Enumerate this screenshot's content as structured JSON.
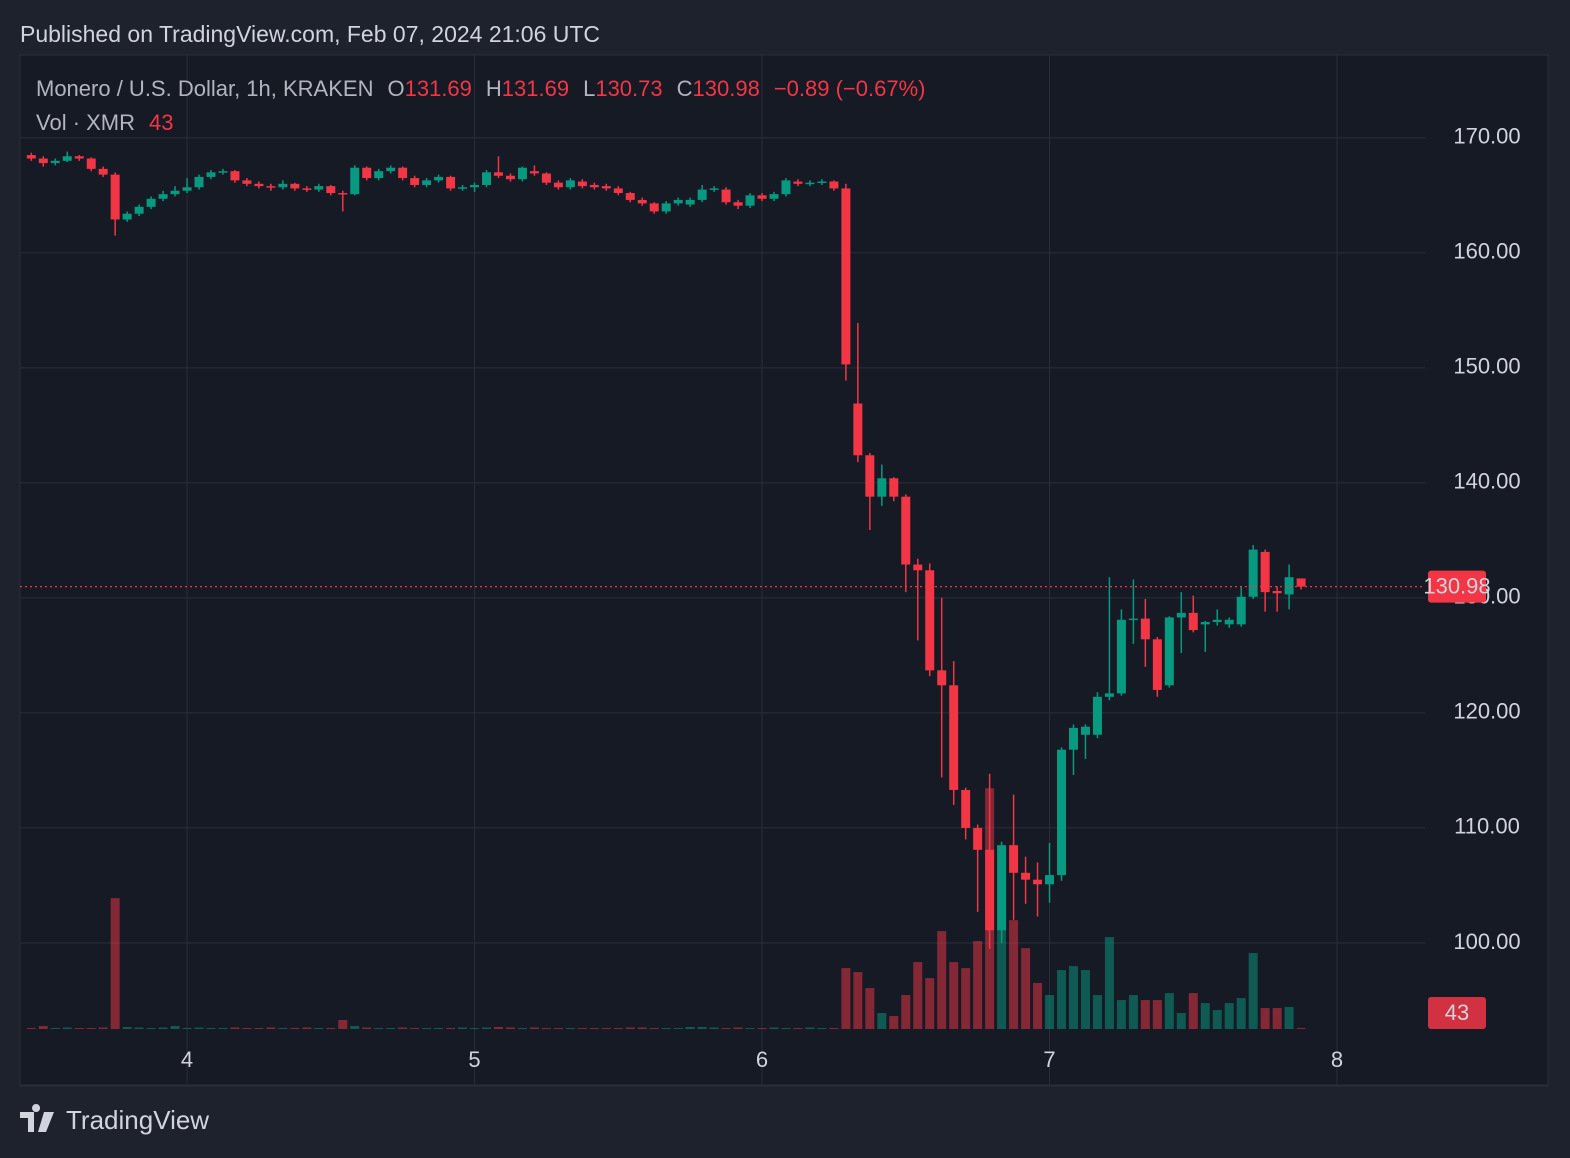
{
  "chart_data": {
    "type": "candlestick",
    "published": "Published on TradingView.com, Feb 07, 2024 21:06 UTC",
    "title": "Monero / U.S. Dollar, 1h, KRAKEN",
    "ohlc_labels": [
      "O",
      "H",
      "L",
      "C"
    ],
    "change_label": "−0.89 (−0.67%)",
    "volume_label": "Vol · XMR",
    "brand": "TradingView",
    "up_color": "#089981",
    "down_color": "#f23645",
    "grid": true,
    "x": [
      3.4583,
      3.5,
      3.5417,
      3.5833,
      3.625,
      3.6667,
      3.7083,
      3.75,
      3.7917,
      3.8333,
      3.875,
      3.9167,
      3.9583,
      4,
      4.0417,
      4.0833,
      4.125,
      4.1667,
      4.2083,
      4.25,
      4.2917,
      4.3333,
      4.375,
      4.4167,
      4.4583,
      4.5,
      4.5417,
      4.5833,
      4.625,
      4.6667,
      4.7083,
      4.75,
      4.7917,
      4.8333,
      4.875,
      4.9167,
      4.9583,
      5,
      5.0417,
      5.0833,
      5.125,
      5.1667,
      5.2083,
      5.25,
      5.2917,
      5.3333,
      5.375,
      5.4167,
      5.4583,
      5.5,
      5.5417,
      5.5833,
      5.625,
      5.6667,
      5.7083,
      5.75,
      5.7917,
      5.8333,
      5.875,
      5.9167,
      5.9583,
      6,
      6.0417,
      6.0833,
      6.125,
      6.1667,
      6.2083,
      6.25,
      6.2917,
      6.3333,
      6.375,
      6.4167,
      6.4583,
      6.5,
      6.5417,
      6.5833,
      6.625,
      6.6667,
      6.7083,
      6.75,
      6.7917,
      6.8333,
      6.875,
      6.9167,
      6.9583,
      7,
      7.0417,
      7.0833,
      7.125,
      7.1667,
      7.2083,
      7.25,
      7.2917,
      7.3333,
      7.375,
      7.4167,
      7.4583,
      7.5,
      7.5417,
      7.5833,
      7.625,
      7.6667,
      7.7083,
      7.75,
      7.7917,
      7.8333,
      7.875
    ],
    "open": [
      168.5,
      168.2,
      167.8,
      168.0,
      168.4,
      168.2,
      167.3,
      166.8,
      162.9,
      163.4,
      164.0,
      164.7,
      165.1,
      165.4,
      165.7,
      166.6,
      167.0,
      167.1,
      166.3,
      166.0,
      165.8,
      165.7,
      166.0,
      165.6,
      165.5,
      165.8,
      165.2,
      165.1,
      167.4,
      166.5,
      167.1,
      167.4,
      166.5,
      165.9,
      166.3,
      166.6,
      165.6,
      165.7,
      165.9,
      167.0,
      166.7,
      166.4,
      167.1,
      166.9,
      166.1,
      165.7,
      166.2,
      165.9,
      165.8,
      165.6,
      165.2,
      164.6,
      164.3,
      163.6,
      164.3,
      164.2,
      164.6,
      165.5,
      165.5,
      164.4,
      164.1,
      165.0,
      164.7,
      165.1,
      166.2,
      166.0,
      166.1,
      166.2,
      165.6,
      146.9,
      142.4,
      138.8,
      140.4,
      138.8,
      132.9,
      132.4,
      123.7,
      122.4,
      113.3,
      110.0,
      108.1,
      101.1,
      108.5,
      106.1,
      105.5,
      105.1,
      105.9,
      116.8,
      118.1,
      118.1,
      121.4,
      121.7,
      128.1,
      128.2,
      126.4,
      122.4,
      128.3,
      128.7,
      127.7,
      127.9,
      127.7,
      127.7,
      130.1,
      134.0,
      130.6,
      130.3,
      131.69
    ],
    "high": [
      168.7,
      168.4,
      168.2,
      168.8,
      168.5,
      168.3,
      167.5,
      167.0,
      163.6,
      164.2,
      164.9,
      165.4,
      165.8,
      166.5,
      166.8,
      167.2,
      167.3,
      167.2,
      166.5,
      166.2,
      166.0,
      166.3,
      166.1,
      165.8,
      166.0,
      165.9,
      165.4,
      167.6,
      167.5,
      167.3,
      167.6,
      167.5,
      166.7,
      166.5,
      166.8,
      166.7,
      165.9,
      166.1,
      167.2,
      168.4,
      166.9,
      167.5,
      167.6,
      167.0,
      166.3,
      166.5,
      166.4,
      166.1,
      166.0,
      165.8,
      165.3,
      164.8,
      164.4,
      164.5,
      164.8,
      164.8,
      165.9,
      165.8,
      165.7,
      164.6,
      165.2,
      165.2,
      165.3,
      166.5,
      166.4,
      166.3,
      166.4,
      166.3,
      166.0,
      153.9,
      142.6,
      141.6,
      140.5,
      139.0,
      133.4,
      133.0,
      130.0,
      124.5,
      113.5,
      110.3,
      114.7,
      108.8,
      112.9,
      107.5,
      107.0,
      108.7,
      117.0,
      119.0,
      119.0,
      121.8,
      131.8,
      129.0,
      131.6,
      129.9,
      126.6,
      128.4,
      130.5,
      130.2,
      128.0,
      129.0,
      128.3,
      131.0,
      134.6,
      134.2,
      131.0,
      132.9,
      131.69
    ],
    "low": [
      168.0,
      167.5,
      167.6,
      167.9,
      168.0,
      167.1,
      166.6,
      161.5,
      162.7,
      163.2,
      163.8,
      164.5,
      164.9,
      165.2,
      165.5,
      166.4,
      166.8,
      166.1,
      165.8,
      165.6,
      165.4,
      165.5,
      165.4,
      165.3,
      165.3,
      165.0,
      163.6,
      165.0,
      166.3,
      166.3,
      166.9,
      166.3,
      165.7,
      165.7,
      166.1,
      165.4,
      165.4,
      165.3,
      165.7,
      166.5,
      166.2,
      166.2,
      166.7,
      165.9,
      165.5,
      165.5,
      165.6,
      165.5,
      165.4,
      165.0,
      164.4,
      164.1,
      163.4,
      163.4,
      164.1,
      164.0,
      164.4,
      165.3,
      164.2,
      163.8,
      163.9,
      164.5,
      164.5,
      164.9,
      165.8,
      165.8,
      165.9,
      165.4,
      148.9,
      141.8,
      135.9,
      138.0,
      138.4,
      130.5,
      126.3,
      123.2,
      114.4,
      112.0,
      109.0,
      102.7,
      99.5,
      100.0,
      102.0,
      103.4,
      102.3,
      103.5,
      105.4,
      114.6,
      116.0,
      117.8,
      121.1,
      121.5,
      126.0,
      124.0,
      121.4,
      122.2,
      125.2,
      127.0,
      125.3,
      127.6,
      127.4,
      127.5,
      129.9,
      128.8,
      128.8,
      129.0,
      130.73
    ],
    "close": [
      168.2,
      167.8,
      168.0,
      168.4,
      168.2,
      167.3,
      166.8,
      162.9,
      163.4,
      164.0,
      164.7,
      165.1,
      165.4,
      165.7,
      166.6,
      167.0,
      167.1,
      166.3,
      166.0,
      165.8,
      165.7,
      166.0,
      165.6,
      165.5,
      165.8,
      165.2,
      165.1,
      167.4,
      166.5,
      167.1,
      167.4,
      166.5,
      165.9,
      166.3,
      166.6,
      165.6,
      165.7,
      165.9,
      167.0,
      166.7,
      166.4,
      167.4,
      166.9,
      166.1,
      165.7,
      166.3,
      165.8,
      165.7,
      165.6,
      165.2,
      164.6,
      164.3,
      163.6,
      164.3,
      164.6,
      164.6,
      165.5,
      165.6,
      164.4,
      164.1,
      165.0,
      164.7,
      165.1,
      166.3,
      166.0,
      166.1,
      166.2,
      165.6,
      150.3,
      142.4,
      138.8,
      140.4,
      138.8,
      132.9,
      132.4,
      123.7,
      122.4,
      113.3,
      110.0,
      108.1,
      101.1,
      108.5,
      106.1,
      105.5,
      105.1,
      105.9,
      116.8,
      118.7,
      118.8,
      121.4,
      121.7,
      128.1,
      128.2,
      126.4,
      122.0,
      128.3,
      128.7,
      127.2,
      127.9,
      128.1,
      128.1,
      130.1,
      134.2,
      130.5,
      130.4,
      131.8,
      130.98
    ],
    "volume": [
      40,
      120,
      40,
      60,
      40,
      40,
      60,
      5240,
      80,
      60,
      40,
      60,
      120,
      40,
      60,
      40,
      40,
      60,
      40,
      40,
      60,
      40,
      40,
      60,
      40,
      40,
      360,
      120,
      60,
      40,
      40,
      60,
      40,
      40,
      40,
      40,
      60,
      40,
      60,
      80,
      60,
      40,
      60,
      40,
      40,
      40,
      40,
      40,
      40,
      40,
      60,
      60,
      40,
      40,
      40,
      80,
      80,
      60,
      40,
      60,
      40,
      40,
      60,
      40,
      40,
      60,
      40,
      40,
      2440,
      2280,
      1640,
      640,
      520,
      1360,
      2680,
      2040,
      3920,
      2680,
      2440,
      3520,
      9640,
      3960,
      4360,
      3240,
      1840,
      1360,
      2360,
      2520,
      2360,
      1360,
      3680,
      1160,
      1360,
      1160,
      1160,
      1440,
      640,
      1440,
      1040,
      760,
      1040,
      1240,
      3040,
      840,
      840,
      880,
      43
    ],
    "xlim": [
      3.419,
      8.306
    ],
    "xticks": [
      4,
      5,
      6,
      7,
      8
    ],
    "ylim": [
      87.65,
      177.2
    ],
    "yticks": [
      {
        "value": 100,
        "label": "100.00"
      },
      {
        "value": 110,
        "label": "110.00"
      },
      {
        "value": 120,
        "label": "120.00"
      },
      {
        "value": 130,
        "label": "130.00"
      },
      {
        "value": 140,
        "label": "140.00"
      },
      {
        "value": 150,
        "label": "150.00"
      },
      {
        "value": 160,
        "label": "160.00"
      },
      {
        "value": 170,
        "label": "170.00"
      }
    ],
    "y2lim": [
      0,
      39000
    ]
  }
}
